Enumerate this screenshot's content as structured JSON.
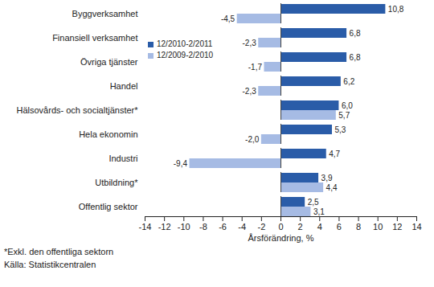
{
  "chart_data": {
    "type": "bar",
    "orientation": "horizontal",
    "categories": [
      "Byggverksamhet",
      "Finansiell verksamhet",
      "Övriga tjänster",
      "Handel",
      "Hälsovårds- och socialtjänster*",
      "Hela ekonomin",
      "Industri",
      "Utbildning*",
      "Offentlig sektor"
    ],
    "series": [
      {
        "name": "12/2010-2/2011",
        "color": "#2a5ca8",
        "values": [
          10.8,
          6.8,
          6.8,
          6.2,
          6.0,
          5.3,
          4.7,
          3.9,
          2.5
        ],
        "value_labels": [
          "10,8",
          "6,8",
          "6,8",
          "6,2",
          "6,0",
          "5,3",
          "4,7",
          "3,9",
          "2,5"
        ]
      },
      {
        "name": "12/2009-2/2010",
        "color": "#a6bbe4",
        "values": [
          -4.5,
          -2.3,
          -1.7,
          -2.3,
          5.7,
          -2.0,
          -9.4,
          4.4,
          3.1
        ],
        "value_labels": [
          "-4,5",
          "-2,3",
          "-1,7",
          "-2,3",
          "5,7",
          "-2,0",
          "-9,4",
          "4,4",
          "3,1"
        ]
      }
    ],
    "xlabel": "Årsförändring, %",
    "xlim": [
      -14,
      14
    ],
    "xticks": [
      -14,
      -12,
      -10,
      -8,
      -6,
      -4,
      -2,
      0,
      2,
      4,
      6,
      8,
      10,
      12,
      14
    ],
    "data_labels": true,
    "legend": "upper left",
    "grid": false,
    "annotations": [
      "*Exkl. den offentliga sektorn",
      "Källa: Statistikcentralen"
    ]
  }
}
